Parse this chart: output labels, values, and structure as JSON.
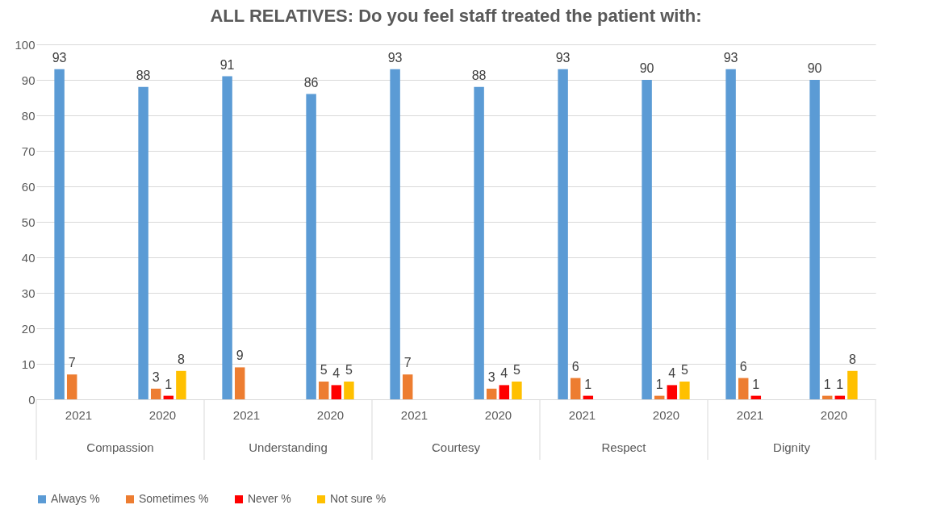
{
  "chart_data": {
    "type": "bar",
    "title": "ALL RELATIVES: Do you feel staff treated the patient with:",
    "categories": [
      "2021",
      "2020",
      "2021",
      "2020",
      "2021",
      "2020",
      "2021",
      "2020",
      "2021",
      "2020"
    ],
    "annotations": [
      "Compassion",
      "Understanding",
      "Courtesy",
      "Respect",
      "Dignity"
    ],
    "series": [
      {
        "name": "Always %",
        "color": "#5b9bd5",
        "values": [
          93,
          88,
          91,
          86,
          93,
          88,
          93,
          90,
          93,
          90
        ]
      },
      {
        "name": "Sometimes %",
        "color": "#ed7d31",
        "values": [
          7,
          3,
          9,
          5,
          7,
          3,
          6,
          1,
          6,
          1
        ]
      },
      {
        "name": "Never %",
        "color": "#ff0000",
        "values": [
          null,
          1,
          null,
          4,
          null,
          4,
          1,
          4,
          1,
          1
        ]
      },
      {
        "name": "Not sure %",
        "color": "#ffc000",
        "values": [
          null,
          8,
          null,
          5,
          null,
          5,
          null,
          5,
          null,
          8
        ]
      }
    ],
    "ylim": [
      0,
      100
    ],
    "yticks": [
      0,
      10,
      20,
      30,
      40,
      50,
      60,
      70,
      80,
      90,
      100
    ],
    "grid": "y",
    "legend": "bottom",
    "data_labels": true
  }
}
